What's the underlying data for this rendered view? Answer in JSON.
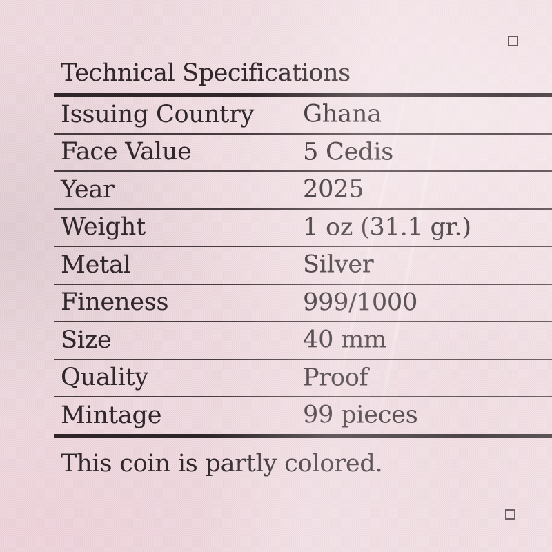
{
  "title": "Technical Specifications",
  "table": {
    "rows": [
      {
        "label": "Issuing Country",
        "value": "Ghana"
      },
      {
        "label": "Face Value",
        "value": "5 Cedis"
      },
      {
        "label": "Year",
        "value": "2025"
      },
      {
        "label": "Weight",
        "value": "1 oz (31.1 gr.)"
      },
      {
        "label": "Metal",
        "value": "Silver"
      },
      {
        "label": "Fineness",
        "value": "999/1000"
      },
      {
        "label": "Size",
        "value": "40 mm"
      },
      {
        "label": "Quality",
        "value": "Proof"
      },
      {
        "label": "Mintage",
        "value": "99 pieces"
      }
    ]
  },
  "note": "This coin is partly colored.",
  "marks": {
    "top_right": "square-outline-mark",
    "bottom_right": "square-outline-mark"
  },
  "colors": {
    "paper_pink": "#f0dde2",
    "ink": "#30272a",
    "rule_thin": "#473a3e",
    "rule_thick": "#302629"
  }
}
